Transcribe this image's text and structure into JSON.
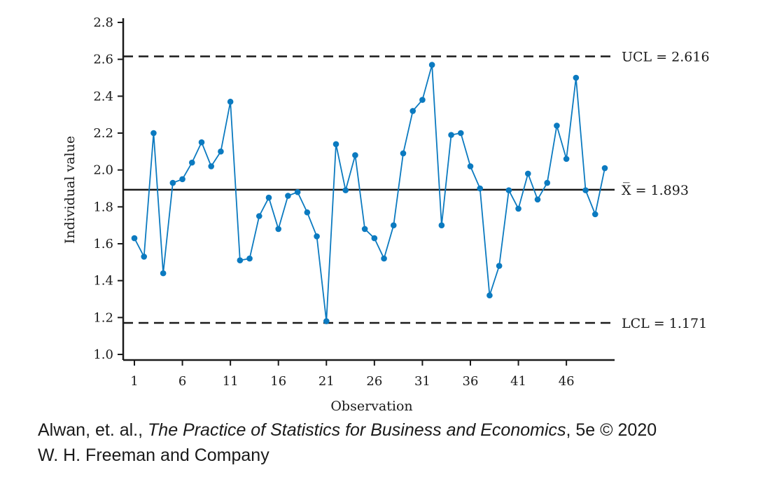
{
  "chart_data": {
    "type": "line",
    "xlabel": "Observation",
    "ylabel": "Individual value",
    "ylim": [
      1.0,
      2.8
    ],
    "xlim": [
      0.5,
      50.5
    ],
    "yticks": [
      "1.0",
      "1.2",
      "1.4",
      "1.6",
      "1.8",
      "2.0",
      "2.2",
      "2.4",
      "2.6",
      "2.8"
    ],
    "xticks": [
      "1",
      "6",
      "11",
      "16",
      "21",
      "26",
      "31",
      "36",
      "41",
      "46"
    ],
    "grid": false,
    "series": [
      {
        "color": "#0b7ac0",
        "values": [
          1.63,
          1.53,
          2.2,
          1.44,
          1.93,
          1.95,
          2.04,
          2.15,
          2.02,
          2.1,
          2.37,
          1.51,
          1.52,
          1.75,
          1.85,
          1.68,
          1.86,
          1.88,
          1.77,
          1.64,
          1.18,
          2.14,
          1.89,
          2.08,
          1.68,
          1.63,
          1.52,
          1.7,
          2.09,
          2.32,
          2.38,
          2.57,
          1.7,
          2.19,
          2.2,
          2.02,
          1.9,
          1.32,
          1.48,
          1.89,
          1.79,
          1.98,
          1.84,
          1.93,
          2.24,
          2.06,
          2.5,
          1.89,
          1.76,
          2.01
        ]
      }
    ],
    "reference_lines": [
      {
        "label": "UCL = 2.616",
        "value": 2.616,
        "style": "dashed"
      },
      {
        "label": "X̅ = 1.893",
        "value": 1.893,
        "style": "solid"
      },
      {
        "label": "LCL = 1.171",
        "value": 1.171,
        "style": "dashed"
      }
    ]
  },
  "credit": {
    "authors": "Alwan, et. al., ",
    "book_title": "The Practice of Statistics for Business and Economics",
    "edition": ", 5e © 2020",
    "publisher": "W. H. Freeman and Company"
  }
}
